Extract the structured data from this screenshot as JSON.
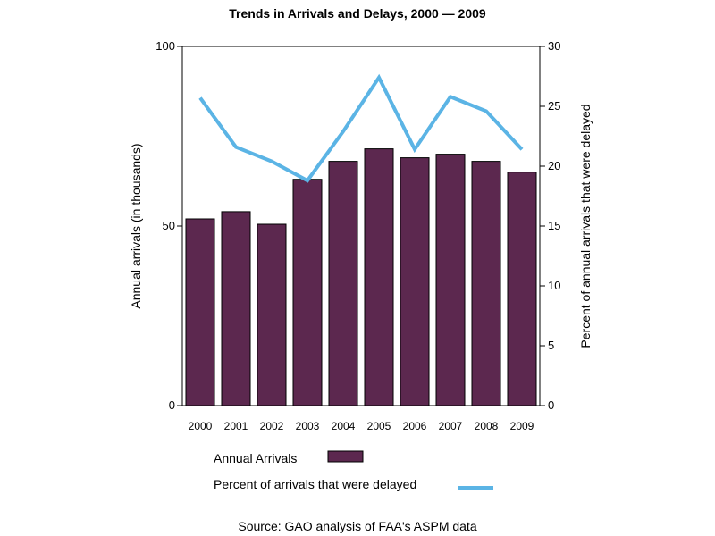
{
  "chart_data": {
    "type": "bar",
    "title": "Trends in Arrivals and Delays, 2000 — 2009",
    "categories": [
      "2000",
      "2001",
      "2002",
      "2003",
      "2004",
      "2005",
      "2006",
      "2007",
      "2008",
      "2009"
    ],
    "series": [
      {
        "name": "Annual Arrivals",
        "type": "bar",
        "axis": "left",
        "color": "#5c284f",
        "values": [
          52,
          54,
          50.5,
          63,
          68,
          71.5,
          69,
          70,
          68,
          65
        ]
      },
      {
        "name": "Percent of arrivals that were delayed",
        "type": "line",
        "axis": "right",
        "color": "#5bb4e5",
        "values": [
          25.7,
          21.6,
          20.4,
          18.8,
          22.9,
          27.4,
          21.4,
          25.8,
          24.6,
          21.4
        ]
      }
    ],
    "ylabel": "Annual arrivals (in thousands)",
    "ylim": [
      0,
      100
    ],
    "yticks": [
      "0",
      "50",
      "100"
    ],
    "y2label": "Percent of annual arrivals that were delayed",
    "y2lim": [
      0,
      30
    ],
    "y2ticks": [
      "0",
      "5",
      "10",
      "15",
      "20",
      "25",
      "30"
    ],
    "grid": false,
    "legend_position": "bottom"
  },
  "legend": {
    "arrivals_label": "Annual Arrivals",
    "delayed_label": "Percent of arrivals that were delayed"
  },
  "source": "Source: GAO analysis of FAA's ASPM data"
}
